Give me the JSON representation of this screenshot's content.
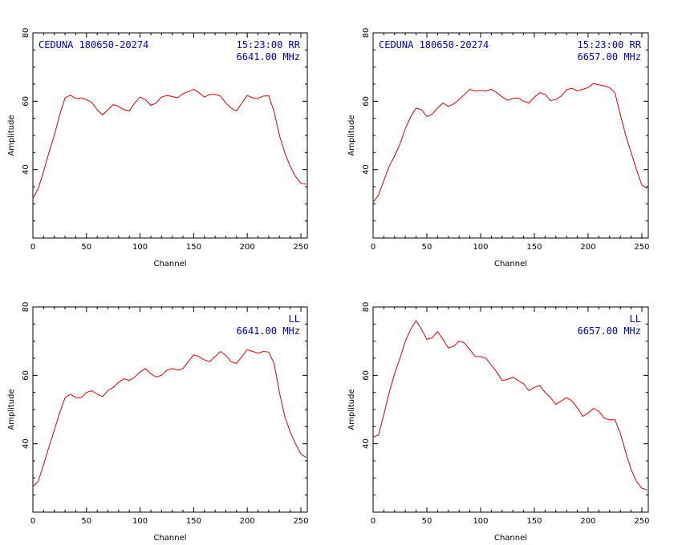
{
  "chart_data": [
    {
      "type": "line",
      "source": "CEDUNA 180650-20274",
      "time_pol": "15:23:00 RR",
      "frequency": "6641.00 MHz",
      "xlabel": "Channel",
      "ylabel": "Amplitude",
      "xlim": [
        0,
        256
      ],
      "ylim": [
        20,
        80
      ],
      "x_ticks": [
        0,
        50,
        100,
        150,
        200,
        250
      ],
      "y_ticks": [
        40,
        60,
        80
      ],
      "series": [
        {
          "x": [
            0,
            5,
            10,
            15,
            20,
            25,
            30,
            35,
            40,
            45,
            50,
            55,
            60,
            65,
            70,
            75,
            80,
            85,
            90,
            95,
            100,
            105,
            110,
            115,
            120,
            125,
            130,
            135,
            140,
            145,
            150,
            155,
            160,
            165,
            170,
            175,
            180,
            185,
            190,
            195,
            200,
            205,
            210,
            215,
            220,
            225,
            230,
            235,
            240,
            245,
            250,
            255
          ],
          "y": [
            31.5,
            34.5,
            39.5,
            45,
            50,
            56,
            61,
            61.8,
            60.8,
            61,
            60.5,
            59.6,
            57.5,
            56,
            57.5,
            59,
            58.5,
            57.5,
            57.2,
            59.5,
            61.2,
            60.5,
            58.8,
            59.5,
            61.2,
            61.7,
            61.4,
            61,
            62.2,
            62.8,
            63.5,
            62.5,
            61.2,
            62,
            62,
            61.5,
            59.5,
            58,
            57.2,
            59.5,
            61.7,
            61,
            60.8,
            61.5,
            61.6,
            57,
            50,
            45,
            41,
            38,
            36,
            35.8
          ]
        }
      ]
    },
    {
      "type": "line",
      "source": "CEDUNA 180650-20274",
      "time_pol": "15:23:00 RR",
      "frequency": "6657.00 MHz",
      "xlabel": "Channel",
      "ylabel": "Amplitude",
      "xlim": [
        0,
        256
      ],
      "ylim": [
        20,
        80
      ],
      "x_ticks": [
        0,
        50,
        100,
        150,
        200,
        250
      ],
      "y_ticks": [
        40,
        60,
        80
      ],
      "series": [
        {
          "x": [
            0,
            5,
            10,
            15,
            20,
            25,
            30,
            35,
            40,
            45,
            50,
            55,
            60,
            65,
            70,
            75,
            80,
            85,
            90,
            95,
            100,
            105,
            110,
            115,
            120,
            125,
            130,
            135,
            140,
            145,
            150,
            155,
            160,
            165,
            170,
            175,
            180,
            185,
            190,
            195,
            200,
            205,
            210,
            215,
            220,
            225,
            230,
            235,
            240,
            245,
            250,
            255
          ],
          "y": [
            30.5,
            32.5,
            36.8,
            41,
            44,
            47.5,
            52,
            55.5,
            58,
            57.5,
            55.5,
            56.2,
            58,
            59.5,
            58.5,
            59.2,
            60.5,
            62,
            63.5,
            63,
            63.2,
            63,
            63.5,
            62.5,
            61.3,
            60.3,
            60.8,
            61,
            60,
            59.5,
            61.2,
            62.5,
            62,
            60.2,
            60.5,
            61.5,
            63.4,
            63.8,
            63,
            63.5,
            64,
            65.2,
            64.8,
            64.5,
            64,
            62.5,
            56,
            50,
            45,
            40,
            35.5,
            34.5
          ]
        }
      ]
    },
    {
      "type": "line",
      "source": "",
      "time_pol": "LL",
      "frequency": "6641.00 MHz",
      "xlabel": "Channel",
      "ylabel": "Amplitude",
      "xlim": [
        0,
        256
      ],
      "ylim": [
        20,
        80
      ],
      "x_ticks": [
        0,
        50,
        100,
        150,
        200,
        250
      ],
      "y_ticks": [
        40,
        60,
        80
      ],
      "series": [
        {
          "x": [
            0,
            5,
            10,
            15,
            20,
            25,
            30,
            35,
            40,
            45,
            50,
            55,
            60,
            65,
            70,
            75,
            80,
            85,
            90,
            95,
            100,
            105,
            110,
            115,
            120,
            125,
            130,
            135,
            140,
            145,
            150,
            155,
            160,
            165,
            170,
            175,
            180,
            185,
            190,
            195,
            200,
            205,
            210,
            215,
            220,
            225,
            230,
            235,
            240,
            245,
            250,
            255
          ],
          "y": [
            27.5,
            29,
            34,
            39,
            44,
            49,
            53.5,
            54.5,
            53.5,
            53.5,
            55,
            55.5,
            54.5,
            53.8,
            55.5,
            56.5,
            58,
            59,
            58.5,
            59.5,
            61,
            62,
            60.5,
            59.5,
            60,
            61.5,
            62,
            61.5,
            62,
            64,
            66,
            65.5,
            64.5,
            64,
            65.5,
            67,
            65.8,
            64,
            63.5,
            65.5,
            67.5,
            67,
            66.5,
            67,
            66.8,
            63.5,
            55,
            48,
            43.5,
            40,
            37,
            36
          ]
        }
      ]
    },
    {
      "type": "line",
      "source": "",
      "time_pol": "LL",
      "frequency": "6657.00 MHz",
      "xlabel": "Channel",
      "ylabel": "Amplitude",
      "xlim": [
        0,
        256
      ],
      "ylim": [
        20,
        80
      ],
      "x_ticks": [
        0,
        50,
        100,
        150,
        200,
        250
      ],
      "y_ticks": [
        40,
        60,
        80
      ],
      "series": [
        {
          "x": [
            0,
            5,
            10,
            15,
            20,
            25,
            30,
            35,
            40,
            45,
            50,
            55,
            60,
            65,
            70,
            75,
            80,
            85,
            90,
            95,
            100,
            105,
            110,
            115,
            120,
            125,
            130,
            135,
            140,
            145,
            150,
            155,
            160,
            165,
            170,
            175,
            180,
            185,
            190,
            195,
            200,
            205,
            210,
            215,
            220,
            225,
            230,
            235,
            240,
            245,
            250,
            255
          ],
          "y": [
            42,
            42.5,
            48.5,
            55,
            60.5,
            65,
            70,
            73.5,
            76,
            73.5,
            70.5,
            71,
            72.8,
            70.5,
            68,
            68.5,
            70,
            69.5,
            67.5,
            65.5,
            65.5,
            65,
            63,
            61,
            58.5,
            58.8,
            59.5,
            58.5,
            57.5,
            55.5,
            56.5,
            57,
            55,
            53.5,
            51.5,
            52.5,
            53.5,
            52.5,
            50.5,
            48,
            49,
            50.3,
            49.5,
            47.5,
            47,
            47,
            43,
            37.5,
            32.5,
            29,
            27,
            26.5
          ]
        }
      ]
    }
  ]
}
